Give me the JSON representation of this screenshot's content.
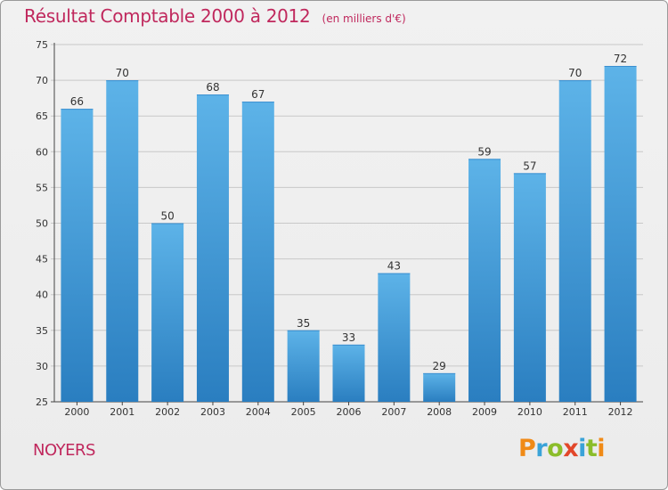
{
  "header": {
    "title": "Résultat Comptable 2000 à 2012",
    "unit": "(en milliers d'€)"
  },
  "commune": "NOYERS",
  "logo": {
    "text": "Proxiti",
    "colors": [
      "#f08a16",
      "#3aa3d8",
      "#8bbd2a",
      "#e2472a",
      "#3aa3d8",
      "#8bbd2a",
      "#f08a16"
    ]
  },
  "colors": {
    "bar_top": "#5db3e8",
    "bar_bottom": "#2a7ec0",
    "title": "#c0285d",
    "grid": "#c8c8c8"
  },
  "chart_data": {
    "type": "bar",
    "categories": [
      "2000",
      "2001",
      "2002",
      "2003",
      "2004",
      "2005",
      "2006",
      "2007",
      "2008",
      "2009",
      "2010",
      "2011",
      "2012"
    ],
    "values": [
      66,
      70,
      50,
      68,
      67,
      35,
      33,
      43,
      29,
      59,
      57,
      70,
      72
    ],
    "title": "Résultat Comptable 2000 à 2012",
    "subtitle": "(en milliers d'€)",
    "xlabel": "",
    "ylabel": "",
    "ylim": [
      25,
      75
    ],
    "yticks": [
      25,
      30,
      35,
      40,
      45,
      50,
      55,
      60,
      65,
      70,
      75
    ],
    "grid": true,
    "legend": "none"
  }
}
